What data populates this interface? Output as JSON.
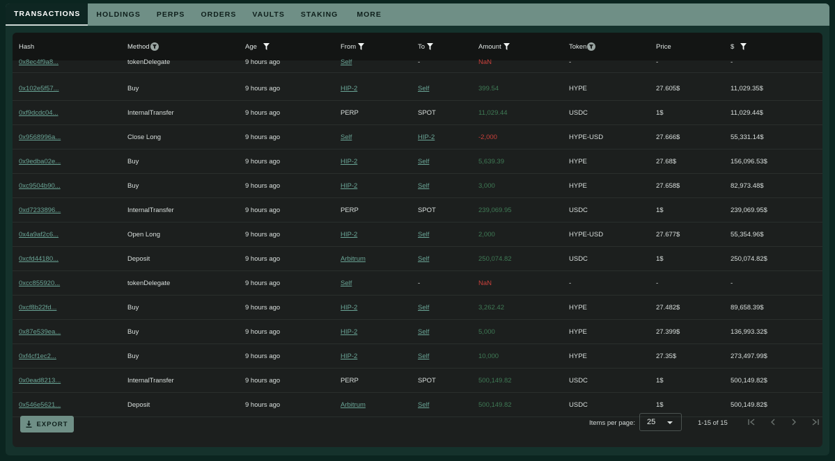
{
  "tabs": [
    {
      "label": "TRANSACTIONS",
      "active": true
    },
    {
      "label": "HOLDINGS",
      "active": false
    },
    {
      "label": "PERPS",
      "active": false
    },
    {
      "label": "ORDERS",
      "active": false
    },
    {
      "label": "VAULTS",
      "active": false
    },
    {
      "label": "STAKING",
      "active": false
    },
    {
      "label": "MORE",
      "active": false
    }
  ],
  "columns": [
    {
      "label": "Hash",
      "filter": "none"
    },
    {
      "label": "Method",
      "filter": "round-filter-icon"
    },
    {
      "label": "Age",
      "filter": "filter-icon"
    },
    {
      "label": "From",
      "filter": "filter-icon"
    },
    {
      "label": "To",
      "filter": "filter-icon"
    },
    {
      "label": "Amount",
      "filter": "filter-icon"
    },
    {
      "label": "Token",
      "filter": "round-filter-icon"
    },
    {
      "label": "Price",
      "filter": "none"
    },
    {
      "label": "$",
      "filter": "filter-icon"
    }
  ],
  "rows": [
    {
      "hash": "0x8ec4f9a8...",
      "method": "tokenDelegate",
      "age": "9 hours ago",
      "from": "Self",
      "from_link": true,
      "to": "-",
      "to_link": false,
      "amount": "NaN",
      "amount_kind": "neg",
      "token": "-",
      "price": "-",
      "usd": "-"
    },
    {
      "hash": "0x102e5f57...",
      "method": "Buy",
      "age": "9 hours ago",
      "from": "HIP-2",
      "from_link": true,
      "to": "Self",
      "to_link": true,
      "amount": "399.54",
      "amount_kind": "pos",
      "token": "HYPE",
      "price": "27.605$",
      "usd": "11,029.35$"
    },
    {
      "hash": "0xf9dcdc04...",
      "method": "InternalTransfer",
      "age": "9 hours ago",
      "from": "PERP",
      "from_link": false,
      "to": "SPOT",
      "to_link": false,
      "amount": "11,029.44",
      "amount_kind": "pos",
      "token": "USDC",
      "price": "1$",
      "usd": "11,029.44$"
    },
    {
      "hash": "0x9568996a...",
      "method": "Close Long",
      "age": "9 hours ago",
      "from": "Self",
      "from_link": true,
      "to": "HIP-2",
      "to_link": true,
      "amount": "-2,000",
      "amount_kind": "neg",
      "token": "HYPE-USD",
      "price": "27.666$",
      "usd": "55,331.14$"
    },
    {
      "hash": "0x9edba02e...",
      "method": "Buy",
      "age": "9 hours ago",
      "from": "HIP-2",
      "from_link": true,
      "to": "Self",
      "to_link": true,
      "amount": "5,639.39",
      "amount_kind": "pos",
      "token": "HYPE",
      "price": "27.68$",
      "usd": "156,096.53$"
    },
    {
      "hash": "0xc9504b90...",
      "method": "Buy",
      "age": "9 hours ago",
      "from": "HIP-2",
      "from_link": true,
      "to": "Self",
      "to_link": true,
      "amount": "3,000",
      "amount_kind": "pos",
      "token": "HYPE",
      "price": "27.658$",
      "usd": "82,973.48$"
    },
    {
      "hash": "0xd7233896...",
      "method": "InternalTransfer",
      "age": "9 hours ago",
      "from": "PERP",
      "from_link": false,
      "to": "SPOT",
      "to_link": false,
      "amount": "239,069.95",
      "amount_kind": "pos",
      "token": "USDC",
      "price": "1$",
      "usd": "239,069.95$"
    },
    {
      "hash": "0x4a9af2c6...",
      "method": "Open Long",
      "age": "9 hours ago",
      "from": "HIP-2",
      "from_link": true,
      "to": "Self",
      "to_link": true,
      "amount": "2,000",
      "amount_kind": "pos",
      "token": "HYPE-USD",
      "price": "27.677$",
      "usd": "55,354.96$"
    },
    {
      "hash": "0xcfd44180...",
      "method": "Deposit",
      "age": "9 hours ago",
      "from": "Arbitrum",
      "from_link": true,
      "to": "Self",
      "to_link": true,
      "amount": "250,074.82",
      "amount_kind": "pos",
      "token": "USDC",
      "price": "1$",
      "usd": "250,074.82$"
    },
    {
      "hash": "0xcc855920...",
      "method": "tokenDelegate",
      "age": "9 hours ago",
      "from": "Self",
      "from_link": true,
      "to": "-",
      "to_link": false,
      "amount": "NaN",
      "amount_kind": "neg",
      "token": "-",
      "price": "-",
      "usd": "-"
    },
    {
      "hash": "0xcf8b22fd...",
      "method": "Buy",
      "age": "9 hours ago",
      "from": "HIP-2",
      "from_link": true,
      "to": "Self",
      "to_link": true,
      "amount": "3,262.42",
      "amount_kind": "pos",
      "token": "HYPE",
      "price": "27.482$",
      "usd": "89,658.39$"
    },
    {
      "hash": "0x87e539ea...",
      "method": "Buy",
      "age": "9 hours ago",
      "from": "HIP-2",
      "from_link": true,
      "to": "Self",
      "to_link": true,
      "amount": "5,000",
      "amount_kind": "pos",
      "token": "HYPE",
      "price": "27.399$",
      "usd": "136,993.32$"
    },
    {
      "hash": "0xf4cf1ec2...",
      "method": "Buy",
      "age": "9 hours ago",
      "from": "HIP-2",
      "from_link": true,
      "to": "Self",
      "to_link": true,
      "amount": "10,000",
      "amount_kind": "pos",
      "token": "HYPE",
      "price": "27.35$",
      "usd": "273,497.99$"
    },
    {
      "hash": "0x0ead8213...",
      "method": "InternalTransfer",
      "age": "9 hours ago",
      "from": "PERP",
      "from_link": false,
      "to": "SPOT",
      "to_link": false,
      "amount": "500,149.82",
      "amount_kind": "pos",
      "token": "USDC",
      "price": "1$",
      "usd": "500,149.82$"
    },
    {
      "hash": "0x546e5621...",
      "method": "Deposit",
      "age": "9 hours ago",
      "from": "Arbitrum",
      "from_link": true,
      "to": "Self",
      "to_link": true,
      "amount": "500,149.82",
      "amount_kind": "pos",
      "token": "USDC",
      "price": "1$",
      "usd": "500,149.82$"
    }
  ],
  "footer": {
    "export_label": "EXPORT",
    "export_icon": "download-icon",
    "items_per_page_label": "Items per page:",
    "items_per_page_value": "25",
    "range_label": "1-15 of 15"
  },
  "colors": {
    "accent": "#6f8f86",
    "link": "#6aa596",
    "positive": "#3f7a55",
    "negative": "#c9403b"
  }
}
